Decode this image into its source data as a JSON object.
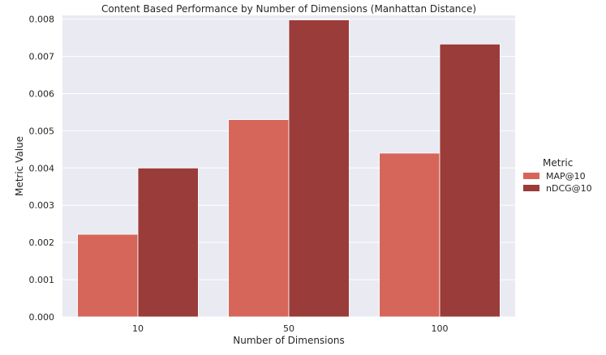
{
  "chart_data": {
    "type": "bar",
    "title": "Content Based Performance by Number of Dimensions (Manhattan Distance)",
    "xlabel": "Number of Dimensions",
    "ylabel": "Metric Value",
    "categories": [
      "10",
      "50",
      "100"
    ],
    "series": [
      {
        "name": "MAP@10",
        "values": [
          0.00222,
          0.0053,
          0.0044
        ],
        "color": "#d6665a"
      },
      {
        "name": "nDCG@10",
        "values": [
          0.004,
          0.00798,
          0.00733
        ],
        "color": "#9a3c3a"
      }
    ],
    "ylim": [
      0,
      0.0081
    ],
    "yticks": [
      "0.000",
      "0.001",
      "0.002",
      "0.003",
      "0.004",
      "0.005",
      "0.006",
      "0.007",
      "0.008"
    ],
    "grid": true,
    "background": "#eaeaf2",
    "legend": {
      "title": "Metric",
      "placement": "right"
    }
  }
}
